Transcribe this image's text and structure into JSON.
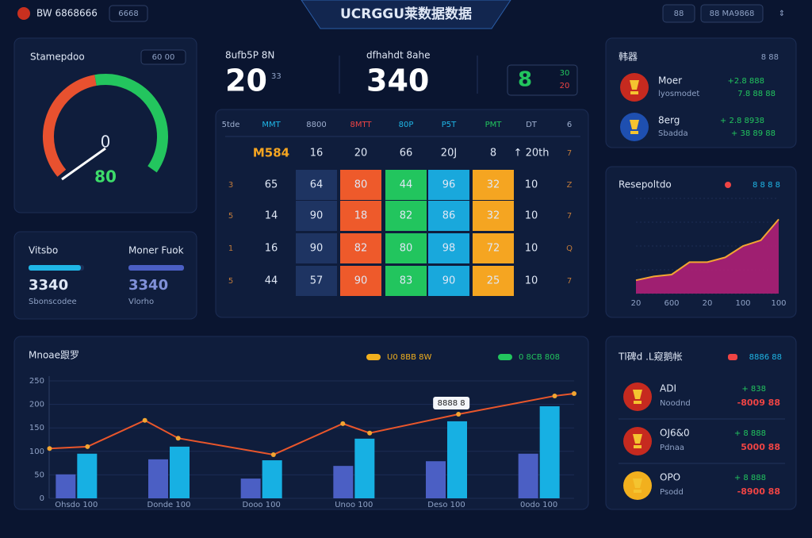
{
  "header": {
    "brand": "BW 6868666",
    "tag": "6668",
    "title": "UCRGGU莱数据数据",
    "button_1": "88",
    "button_2": "88 MA9868"
  },
  "gauge_panel": {
    "title": "Stamepdoo",
    "toggle": "60 00",
    "center": "0",
    "value": "80"
  },
  "progress_panel": [
    {
      "label": "Vitsbo",
      "value": "3340",
      "caption": "Sbonscodee"
    },
    {
      "label": "Moner Fuok",
      "value": "3340",
      "caption": "Vlorho"
    }
  ],
  "stats": [
    {
      "label": "8ufb5P 8N",
      "value": "20",
      "suffix": "33"
    },
    {
      "label": "dfhahdt 8ahe",
      "value": "340"
    }
  ],
  "score_box": {
    "main": "8",
    "top": "30",
    "bottom": "20"
  },
  "table": {
    "header": [
      "5tde",
      "MMT",
      "8800",
      "8MTT",
      "80P",
      "P5T",
      "PMT",
      "DT",
      "6"
    ],
    "rows": [
      [
        null,
        "M584",
        "16",
        "20",
        "66",
        "20J",
        "8",
        "↑ 20th",
        "7"
      ],
      [
        "3",
        "65",
        "64",
        "80",
        "44",
        "96",
        "32",
        "10",
        "Z"
      ],
      [
        "5",
        "14",
        "90",
        "18",
        "82",
        "86",
        "32",
        "10",
        "7"
      ],
      [
        "1",
        "16",
        "90",
        "82",
        "80",
        "98",
        "72",
        "10",
        "Q"
      ],
      [
        "5",
        "44",
        "57",
        "90",
        "83",
        "90",
        "25",
        "10",
        "7"
      ]
    ]
  },
  "clubs": {
    "title": "韩器",
    "note": "8 88",
    "items": [
      {
        "name": "Moer",
        "sub": "lyosmodet",
        "stat_1": "+2.8 888",
        "stat_2": "7.8 88 88"
      },
      {
        "name": "8erg",
        "sub": "Sbadda",
        "stat_1": "+ 2.8 8938",
        "stat_2": "+ 38 89 88"
      }
    ]
  },
  "area_chart": {
    "type": "area",
    "title": "Resepoltdo",
    "legend": "8 8 8 8",
    "color": "#b8207a",
    "line_color": "#f2a531",
    "categories": [
      "20",
      null,
      "600",
      null,
      "20",
      null,
      "100",
      null,
      "100"
    ],
    "values": [
      14,
      18,
      20,
      33,
      33,
      38,
      50,
      56,
      78
    ],
    "ylim": [
      0,
      100
    ]
  },
  "trend_chart": {
    "type": "bar",
    "title": "Mnoae跟罗",
    "annotation": "8888 8",
    "legend": [
      {
        "label": "U0 8BB 8W",
        "color": "#f2b01e"
      },
      {
        "label": "0 8CB 808",
        "color": "#22c55e"
      }
    ],
    "categories": [
      "Ohsdo 100",
      "Donde 100",
      "Dooo 100",
      "Unoo 100",
      "Deso 100",
      "0odo 100"
    ],
    "series": [
      {
        "color": "#4b5fc4",
        "values": [
          51,
          83,
          42,
          69,
          79,
          95
        ]
      },
      {
        "color": "#17b0e3",
        "values": [
          95,
          110,
          81,
          127,
          164,
          196
        ]
      }
    ],
    "line": {
      "color": "#e9562b",
      "x": [
        0.21,
        0.62,
        1.24,
        1.6,
        2.63,
        3.38,
        3.67,
        4.63,
        5.67,
        5.88
      ],
      "values": [
        106,
        110,
        166,
        128,
        93,
        159,
        139,
        179,
        218,
        223
      ]
    },
    "xlim": [
      0,
      6
    ],
    "ylim": [
      0,
      250
    ],
    "yticks": [
      0,
      50,
      100,
      150,
      200,
      250
    ]
  },
  "rank_panel": {
    "title": "Tl碑d .L窥鹅帐",
    "legend": "8886 88",
    "items": [
      {
        "name": "ADI",
        "sub": "Noodnd",
        "stat_1": "+ 838",
        "stat_2": "-8009 88"
      },
      {
        "name": "OJ6&0",
        "sub": "Pdnaa",
        "stat_1": "+ 8 888",
        "stat_2": "5000 88"
      },
      {
        "name": "OPO",
        "sub": "Psodd",
        "stat_1": "+ 8 888",
        "stat_2": "-8900 88"
      }
    ]
  }
}
